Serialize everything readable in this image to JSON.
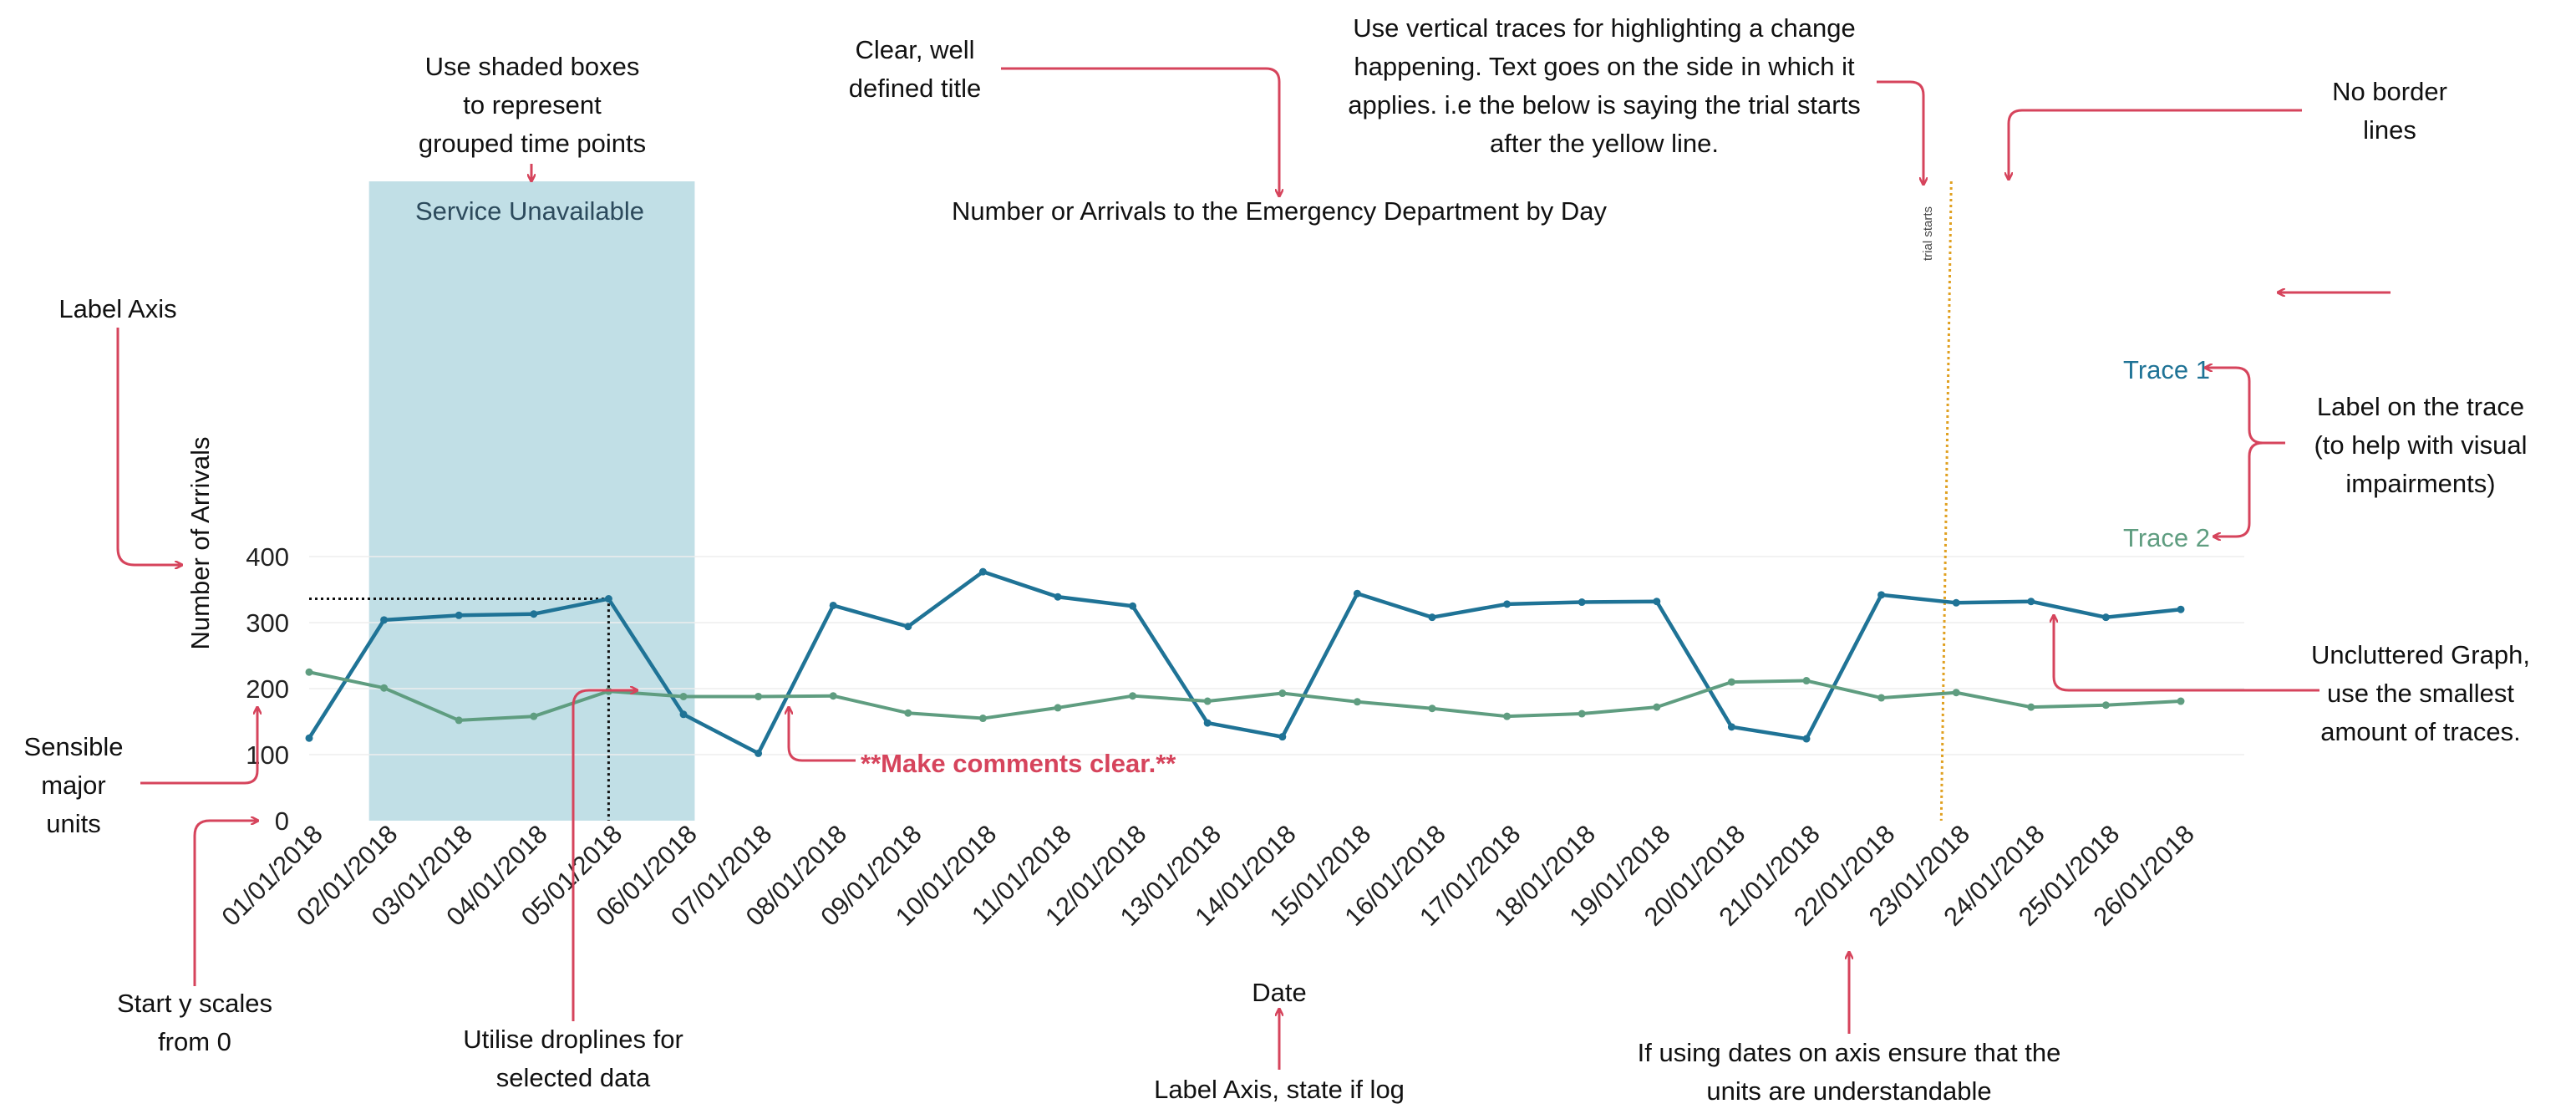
{
  "chart_data": {
    "type": "line",
    "title": "Number or Arrivals to the Emergency Department by Day",
    "xlabel": "Date",
    "ylabel": "Number of Arrivals",
    "ylim": [
      0,
      400
    ],
    "yticks": [
      "0",
      "100",
      "200",
      "300",
      "400"
    ],
    "grid": true,
    "legend": "none (labels on traces)",
    "categories": [
      "01/01/2018",
      "02/01/2018",
      "03/01/2018",
      "04/01/2018",
      "05/01/2018",
      "06/01/2018",
      "07/01/2018",
      "08/01/2018",
      "09/01/2018",
      "10/01/2018",
      "11/01/2018",
      "12/01/2018",
      "13/01/2018",
      "14/01/2018",
      "15/01/2018",
      "16/01/2018",
      "17/01/2018",
      "18/01/2018",
      "19/01/2018",
      "20/01/2018",
      "21/01/2018",
      "22/01/2018",
      "23/01/2018",
      "24/01/2018",
      "25/01/2018",
      "26/01/2018"
    ],
    "series": [
      {
        "name": "Trace 1",
        "color": "#1f7396",
        "values": [
          125,
          304,
          311,
          313,
          336,
          161,
          102,
          326,
          294,
          377,
          339,
          325,
          148,
          127,
          344,
          308,
          328,
          331,
          332,
          142,
          124,
          342,
          330,
          332,
          308,
          320
        ]
      },
      {
        "name": "Trace 2",
        "color": "#5f9d80",
        "values": [
          225,
          201,
          152,
          158,
          196,
          188,
          188,
          189,
          163,
          155,
          171,
          189,
          181,
          193,
          180,
          170,
          158,
          162,
          172,
          210,
          212,
          186,
          194,
          172,
          175,
          181
        ]
      }
    ],
    "shaded_region": {
      "label": "Service Unavailable",
      "from_index": 0.8,
      "to_index": 5.15,
      "color": "#c1dfe6"
    },
    "dropline": {
      "index": 4,
      "value": 336
    },
    "vertical_trace": {
      "label": "trial starts",
      "index": 21.8,
      "color": "#e0a020"
    }
  },
  "annotations": {
    "shaded_boxes": [
      "Use shaded boxes",
      "to represent",
      "grouped time points"
    ],
    "title_tip": [
      "Clear, well",
      "defined title"
    ],
    "vertical_traces": [
      "Use vertical traces for highlighting a change",
      "happening. Text goes on the side in which it",
      "applies. i.e the below is saying the trial starts",
      "after the yellow line."
    ],
    "no_border": [
      "No border",
      "lines"
    ],
    "label_axis_y": "Label Axis",
    "label_on_trace": [
      "Label on the trace",
      "(to help with visual",
      "impairments)"
    ],
    "uncluttered": [
      "Uncluttered Graph,",
      "use the smallest",
      "amount of traces."
    ],
    "sensible_units": [
      "Sensible",
      "major",
      "units"
    ],
    "start_y": [
      "Start y scales",
      "from 0"
    ],
    "droplines": [
      "Utilise droplines for",
      "selected data"
    ],
    "make_comments": "**Make comments clear.**",
    "label_axis_x": "Label Axis, state if log",
    "dates_units": [
      "If using dates on axis ensure that the",
      "units are understandable"
    ]
  },
  "colors": {
    "annotation_arrow": "#d6445c",
    "comment_text": "#d6445c",
    "axis_text": "#222222"
  }
}
